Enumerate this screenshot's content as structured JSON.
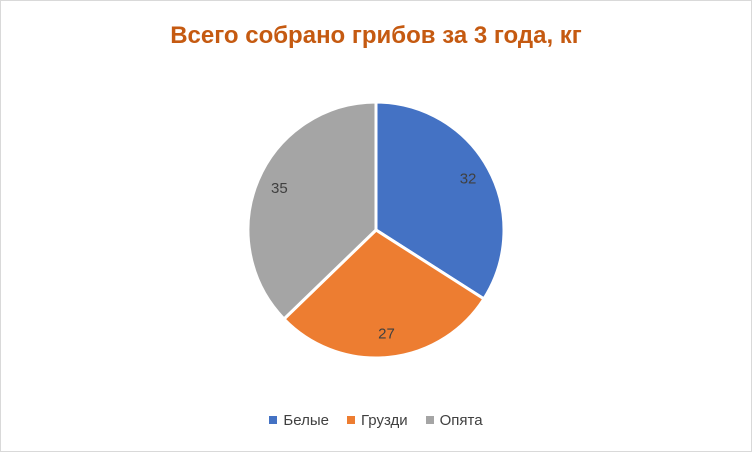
{
  "chart_data": {
    "type": "pie",
    "title": "Всего собрано грибов за 3 года, кг",
    "categories": [
      "Белые",
      "Грузди",
      "Опята"
    ],
    "values": [
      32,
      27,
      35
    ],
    "colors": [
      "#4472c4",
      "#ed7d31",
      "#a5a5a5"
    ],
    "data_labels": [
      "32",
      "27",
      "35"
    ],
    "legend_position": "bottom",
    "title_color": "#c55a11"
  }
}
